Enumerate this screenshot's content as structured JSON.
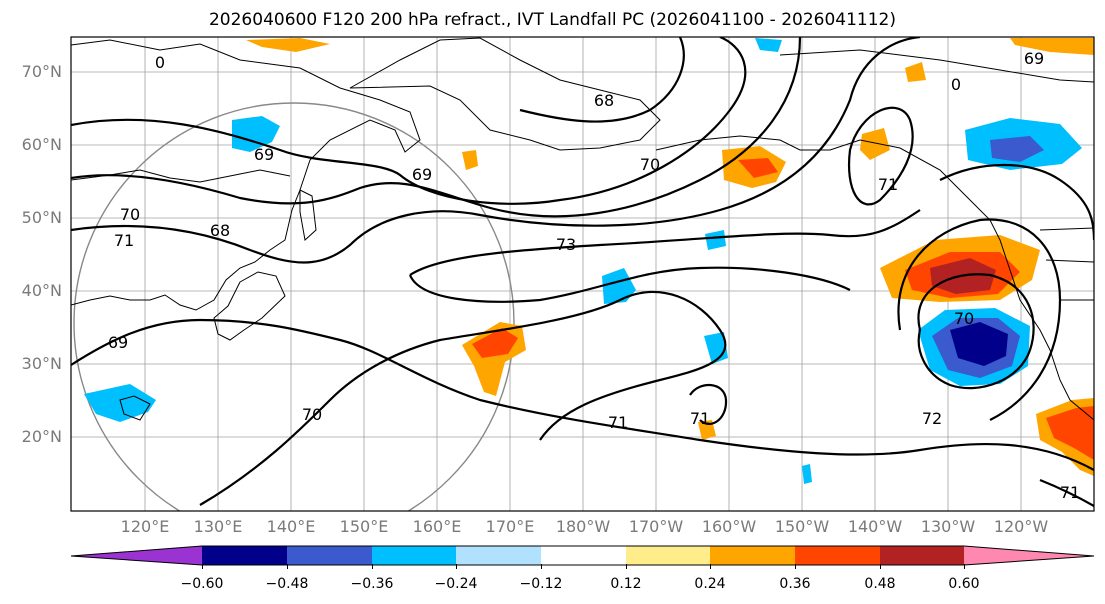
{
  "title": "2026040600 F120 200 hPa refract., IVT Landfall PC (2026041100 - 2026041112)",
  "lat_labels": [
    "70°N",
    "60°N",
    "50°N",
    "40°N",
    "30°N",
    "20°N"
  ],
  "lon_labels": [
    "120°E",
    "130°E",
    "140°E",
    "150°E",
    "160°E",
    "170°E",
    "180°W",
    "170°W",
    "160°W",
    "150°W",
    "140°W",
    "130°W",
    "120°W"
  ],
  "colorbar": {
    "labels": [
      "−0.60",
      "−0.48",
      "−0.36",
      "−0.24",
      "−0.12",
      "0.12",
      "0.24",
      "0.36",
      "0.48",
      "0.60"
    ],
    "colors": [
      "#9b32d2",
      "#00008b",
      "#3a5acd",
      "#00bfff",
      "#b0e2ff",
      "#ffffff",
      "#ffec8b",
      "#ffa500",
      "#ff4500",
      "#b22222",
      "#ff88b0"
    ]
  },
  "contour_labels": [
    "0",
    "69",
    "69",
    "70",
    "68",
    "71",
    "68",
    "70",
    "73",
    "69",
    "70",
    "71",
    "71",
    "72",
    "71",
    "71",
    "70",
    "69",
    "0"
  ]
}
